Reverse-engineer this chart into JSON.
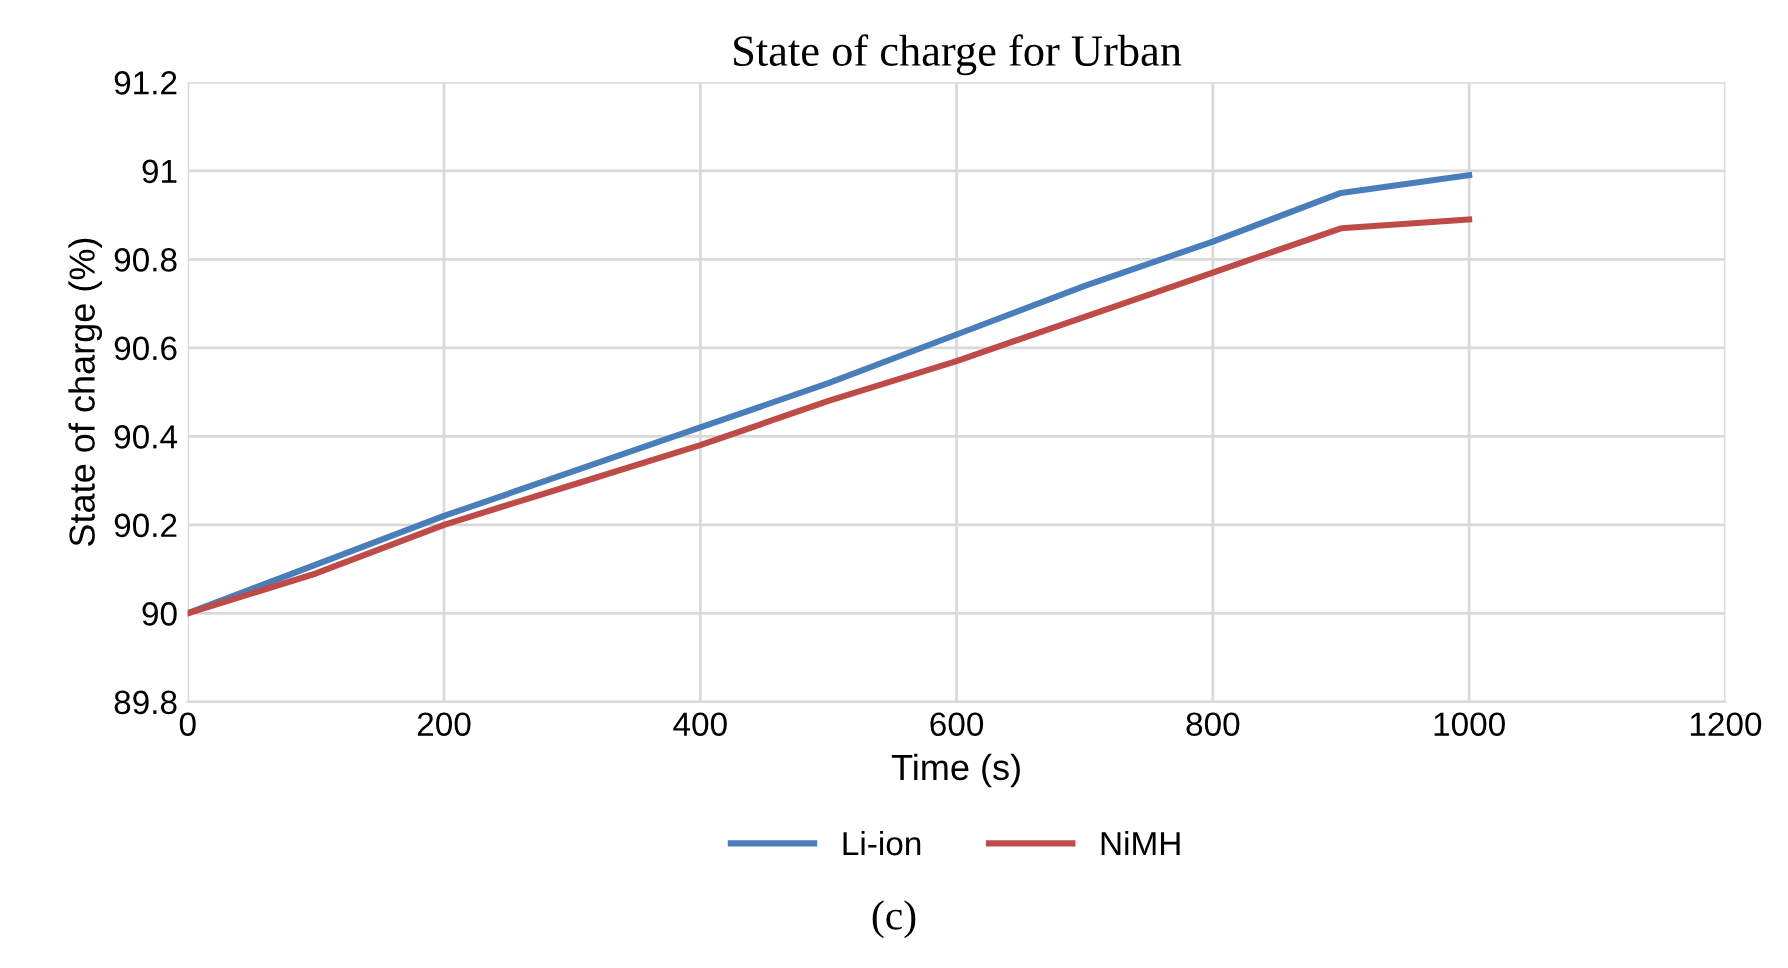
{
  "chart_data": {
    "type": "line",
    "title": "State of charge for Urban",
    "xlabel": "Time (s)",
    "ylabel": "State of charge (%)",
    "x": [
      0,
      100,
      200,
      300,
      400,
      500,
      600,
      700,
      800,
      900,
      1000
    ],
    "series": [
      {
        "name": "Li-ion",
        "color": "#4a7ebb",
        "values": [
          90.0,
          90.11,
          90.22,
          90.32,
          90.42,
          90.52,
          90.63,
          90.74,
          90.84,
          90.95,
          90.99
        ]
      },
      {
        "name": "NiMH",
        "color": "#be4b48",
        "values": [
          90.0,
          90.09,
          90.2,
          90.29,
          90.38,
          90.48,
          90.57,
          90.67,
          90.77,
          90.87,
          90.89
        ]
      }
    ],
    "xlim": [
      0,
      1200
    ],
    "xticks": [
      0,
      200,
      400,
      600,
      800,
      1000,
      1200
    ],
    "ylim": [
      89.8,
      91.2
    ],
    "yticks": [
      {
        "value": 89.8,
        "label": "89.8"
      },
      {
        "value": 90,
        "label": "90"
      },
      {
        "value": 90.2,
        "label": "90.2"
      },
      {
        "value": 90.4,
        "label": "90.4"
      },
      {
        "value": 90.6,
        "label": "90.6"
      },
      {
        "value": 90.8,
        "label": "90.8"
      },
      {
        "value": 91,
        "label": "91"
      },
      {
        "value": 91.2,
        "label": "91.2"
      }
    ],
    "grid": true,
    "legend": "bottom",
    "marker": "none",
    "line_style": "solid",
    "annotations": [
      "(c)"
    ]
  }
}
